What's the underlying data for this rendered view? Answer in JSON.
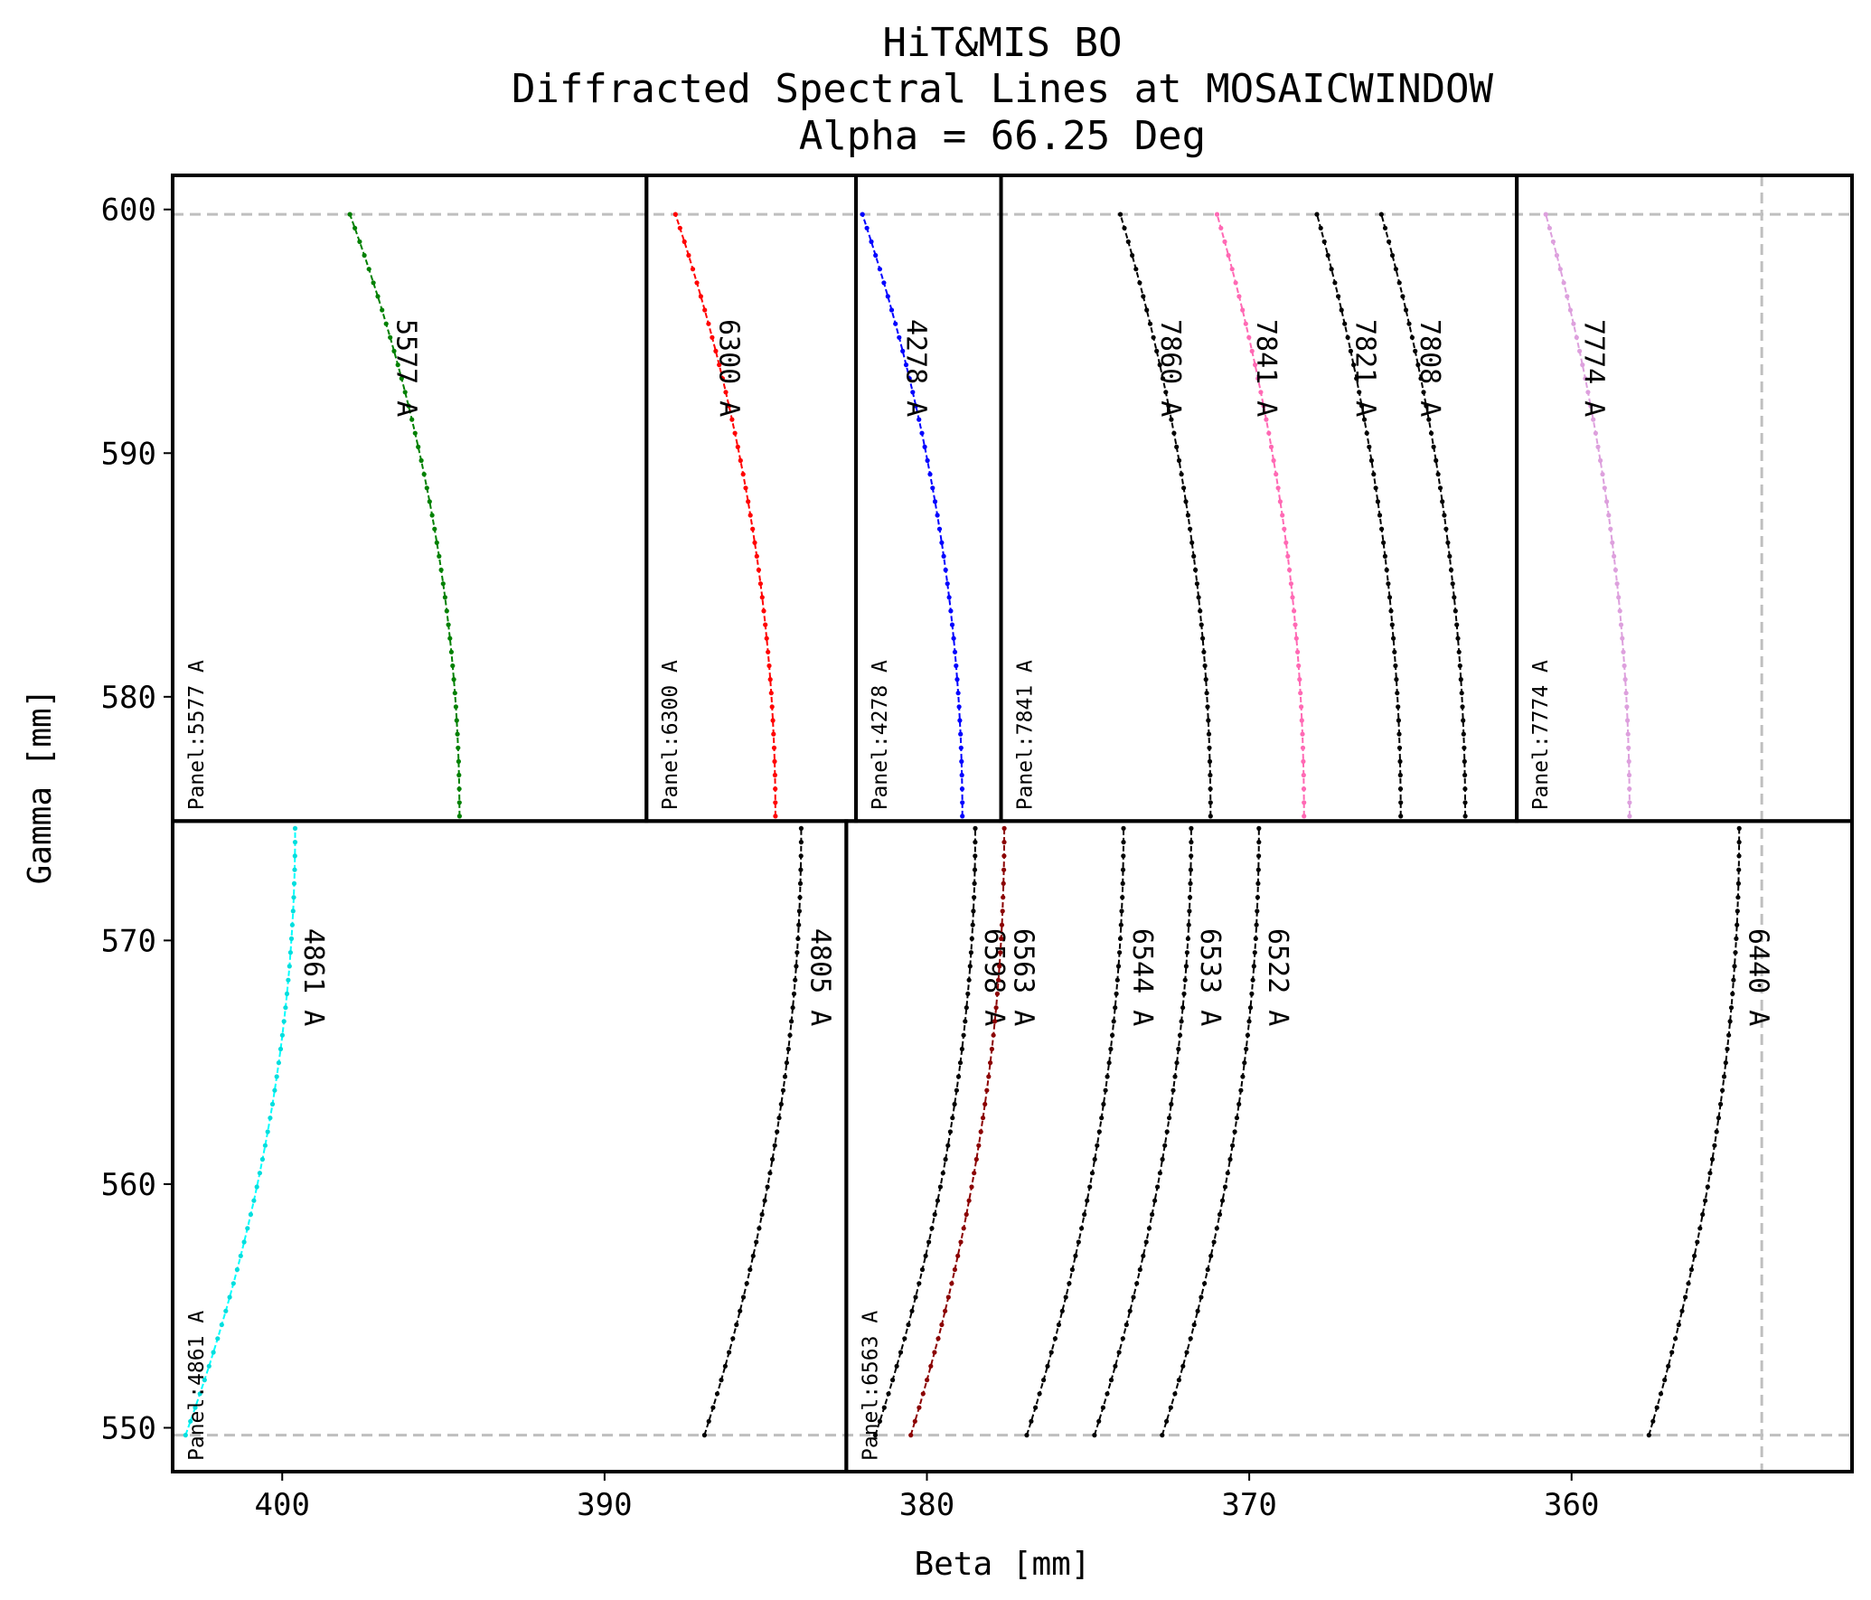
{
  "chart_data": {
    "type": "line",
    "title_lines": [
      "HiT&MIS BO",
      "Diffracted Spectral Lines at MOSAICWINDOW",
      "Alpha = 66.25 Deg"
    ],
    "xlabel": "Beta [mm]",
    "ylabel": "Gamma [mm]",
    "xlim": [
      403.4,
      351.3
    ],
    "ylim": [
      548.2,
      601.4
    ],
    "x_ticks": [
      400,
      390,
      380,
      370,
      360
    ],
    "y_ticks": [
      600,
      590,
      580,
      570,
      560,
      550
    ],
    "grid": false,
    "reference_lines": {
      "y": [
        599.8,
        549.7
      ],
      "x": [
        354.1
      ]
    },
    "panels": [
      {
        "label": "Panel:5577 A",
        "beta_range": [
          403.4,
          388.7
        ],
        "gamma_range": [
          574.9,
          601.4
        ]
      },
      {
        "label": "Panel:6300 A",
        "beta_range": [
          388.7,
          382.2
        ],
        "gamma_range": [
          574.9,
          601.4
        ]
      },
      {
        "label": "Panel:4278 A",
        "beta_range": [
          382.2,
          377.7
        ],
        "gamma_range": [
          574.9,
          601.4
        ]
      },
      {
        "label": "Panel:7841 A",
        "beta_range": [
          377.7,
          361.7
        ],
        "gamma_range": [
          574.9,
          601.4
        ]
      },
      {
        "label": "Panel:7774 A",
        "beta_range": [
          361.7,
          351.3
        ],
        "gamma_range": [
          574.9,
          601.4
        ]
      },
      {
        "label": "Panel:4861 A",
        "beta_range": [
          403.4,
          382.5
        ],
        "gamma_range": [
          548.2,
          574.9
        ]
      },
      {
        "label": "Panel:6563 A",
        "beta_range": [
          382.5,
          351.3
        ],
        "gamma_range": [
          548.2,
          574.9
        ]
      }
    ],
    "series": [
      {
        "name": "5577 A",
        "color": "#008000",
        "gamma_range": [
          575.1,
          599.8
        ],
        "beta_at_gamma_min": 394.5,
        "beta_at_gamma_max": 397.9
      },
      {
        "name": "6300 A",
        "color": "#ff0000",
        "gamma_range": [
          575.1,
          599.8
        ],
        "beta_at_gamma_min": 384.7,
        "beta_at_gamma_max": 387.8
      },
      {
        "name": "4278 A",
        "color": "#0000ff",
        "gamma_range": [
          575.1,
          599.8
        ],
        "beta_at_gamma_min": 378.9,
        "beta_at_gamma_max": 382.0
      },
      {
        "name": "7860 A",
        "color": "#000000",
        "gamma_range": [
          575.1,
          599.8
        ],
        "beta_at_gamma_min": 371.2,
        "beta_at_gamma_max": 374.0
      },
      {
        "name": "7841 A",
        "color": "#ff69b4",
        "gamma_range": [
          575.1,
          599.8
        ],
        "beta_at_gamma_min": 368.3,
        "beta_at_gamma_max": 371.0
      },
      {
        "name": "7821 A",
        "color": "#000000",
        "gamma_range": [
          575.1,
          599.8
        ],
        "beta_at_gamma_min": 365.3,
        "beta_at_gamma_max": 367.9
      },
      {
        "name": "7808 A",
        "color": "#000000",
        "gamma_range": [
          575.1,
          599.8
        ],
        "beta_at_gamma_min": 363.3,
        "beta_at_gamma_max": 365.9
      },
      {
        "name": "7774 A",
        "color": "#dda0dd",
        "gamma_range": [
          575.1,
          599.8
        ],
        "beta_at_gamma_min": 358.2,
        "beta_at_gamma_max": 360.8
      },
      {
        "name": "4861 A",
        "color": "#00ffff",
        "gamma_range": [
          549.7,
          574.6
        ],
        "beta_at_gamma_min": 403.0,
        "beta_at_gamma_max": 399.6
      },
      {
        "name": "4805 A",
        "color": "#000000",
        "gamma_range": [
          549.7,
          574.6
        ],
        "beta_at_gamma_min": 386.9,
        "beta_at_gamma_max": 383.9
      },
      {
        "name": "6598 A",
        "color": "#000000",
        "gamma_range": [
          549.7,
          574.6
        ],
        "beta_at_gamma_min": 381.6,
        "beta_at_gamma_max": 378.5
      },
      {
        "name": "6563 A",
        "color": "#8b0000",
        "gamma_range": [
          549.7,
          574.6
        ],
        "beta_at_gamma_min": 380.5,
        "beta_at_gamma_max": 377.6
      },
      {
        "name": "6544 A",
        "color": "#000000",
        "gamma_range": [
          549.7,
          574.6
        ],
        "beta_at_gamma_min": 376.9,
        "beta_at_gamma_max": 373.9
      },
      {
        "name": "6533 A",
        "color": "#000000",
        "gamma_range": [
          549.7,
          574.6
        ],
        "beta_at_gamma_min": 374.8,
        "beta_at_gamma_max": 371.8
      },
      {
        "name": "6522 A",
        "color": "#000000",
        "gamma_range": [
          549.7,
          574.6
        ],
        "beta_at_gamma_min": 372.7,
        "beta_at_gamma_max": 369.7
      },
      {
        "name": "6440 A",
        "color": "#000000",
        "gamma_range": [
          549.7,
          574.6
        ],
        "beta_at_gamma_min": 357.6,
        "beta_at_gamma_max": 354.8
      }
    ]
  }
}
